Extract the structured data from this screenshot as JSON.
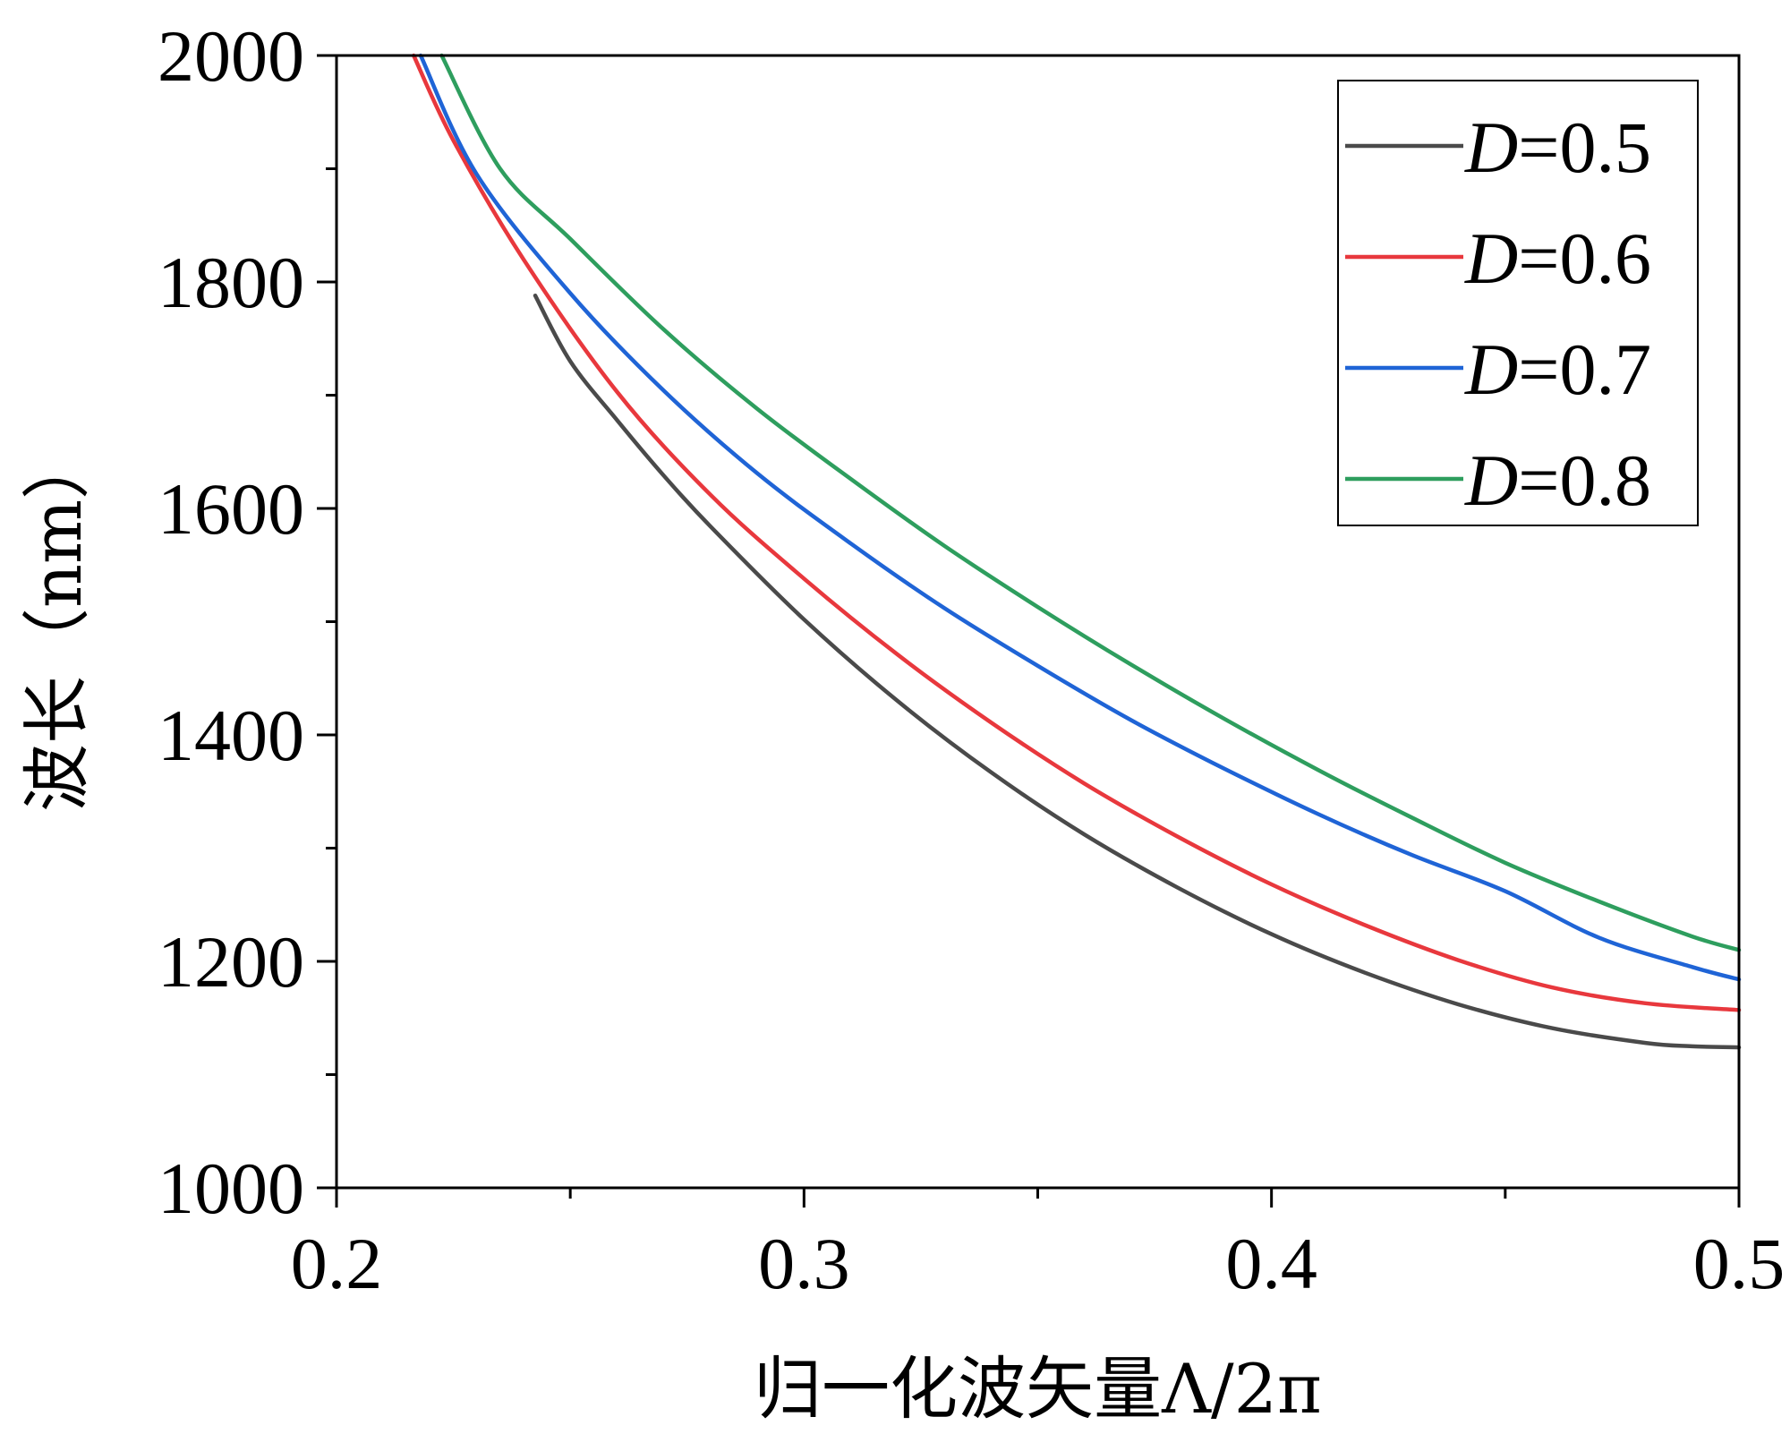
{
  "chart_data": {
    "type": "line",
    "title": "",
    "xlabel": "归一化波矢量Λ/2π",
    "ylabel": "波长（nm）",
    "xlim": [
      0.2,
      0.5
    ],
    "ylim": [
      1000,
      2000
    ],
    "xticks": [
      "0.2",
      "0.3",
      "0.4",
      "0.5"
    ],
    "yticks": [
      "1000",
      "1200",
      "1400",
      "1600",
      "1800",
      "2000"
    ],
    "grid": false,
    "legend_position": "top-right",
    "series": [
      {
        "name": "D=0.5",
        "color": "#4a4a4a",
        "x": [
          0.2425,
          0.25,
          0.26,
          0.27,
          0.28,
          0.3,
          0.32,
          0.34,
          0.36,
          0.38,
          0.4,
          0.42,
          0.44,
          0.46,
          0.48,
          0.49,
          0.5
        ],
        "y": [
          1788,
          1730,
          1678,
          1629,
          1584,
          1502,
          1430,
          1367,
          1312,
          1265,
          1224,
          1190,
          1162,
          1141,
          1128,
          1125,
          1124
        ]
      },
      {
        "name": "D=0.6",
        "color": "#e8383d",
        "x": [
          0.2165,
          0.225,
          0.24,
          0.26,
          0.28,
          0.3,
          0.32,
          0.34,
          0.36,
          0.38,
          0.4,
          0.42,
          0.44,
          0.46,
          0.48,
          0.5
        ],
        "y": [
          2000,
          1925,
          1820,
          1703,
          1612,
          1538,
          1471,
          1411,
          1357,
          1310,
          1268,
          1232,
          1201,
          1177,
          1163,
          1157
        ]
      },
      {
        "name": "D=0.7",
        "color": "#1f64d6",
        "x": [
          0.218,
          0.23,
          0.25,
          0.27,
          0.29,
          0.31,
          0.33,
          0.35,
          0.37,
          0.39,
          0.41,
          0.43,
          0.45,
          0.47,
          0.49,
          0.5
        ],
        "y": [
          2000,
          1895,
          1790,
          1704,
          1631,
          1569,
          1512,
          1461,
          1413,
          1370,
          1330,
          1294,
          1262,
          1221,
          1195,
          1184
        ]
      },
      {
        "name": "D=0.8",
        "color": "#2e9e5e",
        "x": [
          0.2225,
          0.235,
          0.25,
          0.27,
          0.29,
          0.31,
          0.33,
          0.35,
          0.37,
          0.39,
          0.41,
          0.43,
          0.45,
          0.47,
          0.49,
          0.5
        ],
        "y": [
          2000,
          1900,
          1838,
          1758,
          1688,
          1626,
          1567,
          1513,
          1462,
          1414,
          1369,
          1327,
          1287,
          1253,
          1222,
          1210
        ]
      }
    ]
  }
}
